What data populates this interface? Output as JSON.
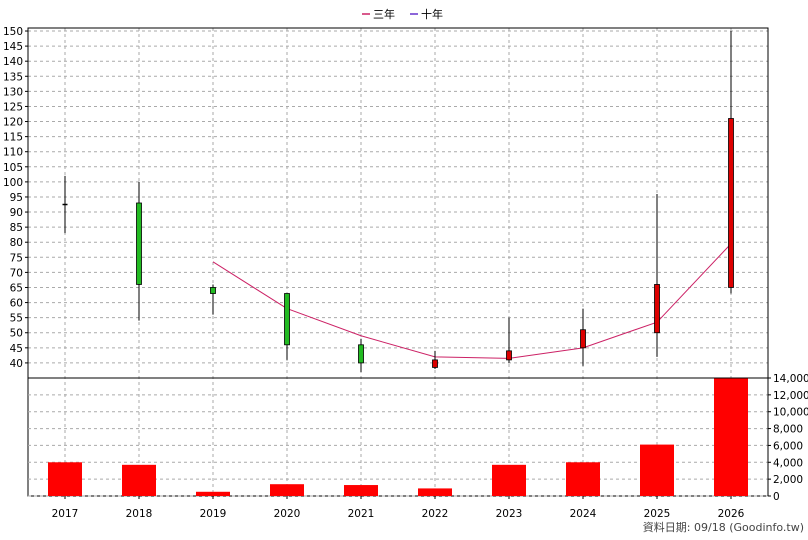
{
  "legend": {
    "items": [
      {
        "label": "三年",
        "color": "#cc2266"
      },
      {
        "label": "十年",
        "color": "#6633cc"
      }
    ]
  },
  "source_note": "資料日期: 09/18 (Goodinfo.tw)",
  "chart_data": [
    {
      "type": "candlestick",
      "title": "",
      "xlabel": "",
      "ylabel": "",
      "categories": [
        "2017",
        "2018",
        "2019",
        "2020",
        "2021",
        "2022",
        "2023",
        "2024",
        "2025",
        "2026"
      ],
      "ylim": [
        35,
        151
      ],
      "yticks": [
        40,
        45,
        50,
        55,
        60,
        65,
        70,
        75,
        80,
        85,
        90,
        95,
        100,
        105,
        110,
        115,
        120,
        125,
        130,
        135,
        140,
        145,
        150
      ],
      "grid": true,
      "colors": {
        "up": "#dd0000",
        "down": "#22bb22",
        "flat": "#000000"
      },
      "candles": [
        {
          "year": "2017",
          "open": 92.5,
          "close": 92.5,
          "high": 102,
          "low": 83
        },
        {
          "year": "2018",
          "open": 93,
          "close": 66,
          "high": 100,
          "low": 54
        },
        {
          "year": "2019",
          "open": 65,
          "close": 63,
          "high": 66,
          "low": 56
        },
        {
          "year": "2020",
          "open": 63,
          "close": 46,
          "high": 63,
          "low": 41
        },
        {
          "year": "2021",
          "open": 46,
          "close": 40,
          "high": 48,
          "low": 37
        },
        {
          "year": "2022",
          "open": 38.5,
          "close": 41,
          "high": 44,
          "low": 38
        },
        {
          "year": "2023",
          "open": 41,
          "close": 44,
          "high": 55,
          "low": 40
        },
        {
          "year": "2024",
          "open": 45,
          "close": 51,
          "high": 58,
          "low": 39
        },
        {
          "year": "2025",
          "open": 50,
          "close": 66,
          "high": 96,
          "low": 42
        },
        {
          "year": "2026",
          "open": 65,
          "close": 121,
          "high": 150,
          "low": 63
        }
      ],
      "series": [
        {
          "name": "三年",
          "color": "#cc2266",
          "values": [
            null,
            null,
            73.5,
            58,
            49,
            42,
            41.5,
            45,
            53.5,
            79.5
          ]
        },
        {
          "name": "十年",
          "color": "#6633cc",
          "values": [
            null,
            null,
            null,
            null,
            null,
            null,
            null,
            null,
            null,
            null
          ]
        }
      ]
    },
    {
      "type": "bar",
      "title": "",
      "xlabel": "",
      "ylabel": "",
      "categories": [
        "2017",
        "2018",
        "2019",
        "2020",
        "2021",
        "2022",
        "2023",
        "2024",
        "2025",
        "2026"
      ],
      "values": [
        4000,
        3700,
        500,
        1400,
        1300,
        900,
        3700,
        4000,
        6100,
        14000
      ],
      "ylim": [
        0,
        14000
      ],
      "yticks": [
        0,
        2000,
        4000,
        6000,
        8000,
        10000,
        12000,
        14000
      ],
      "ytick_labels": [
        "0",
        "2,000",
        "4,000",
        "6,000",
        "8,000",
        "10,000",
        "12,000",
        "14,000"
      ],
      "color": "#ff0000",
      "grid": true
    }
  ]
}
